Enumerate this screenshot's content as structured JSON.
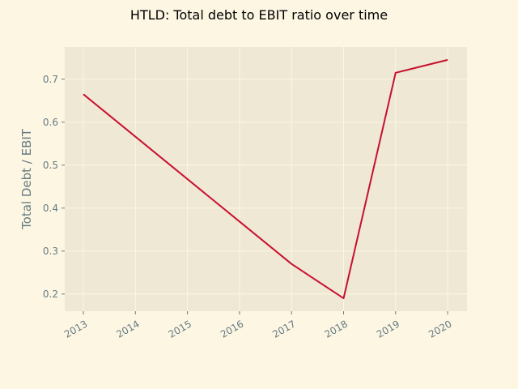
{
  "chart_data": {
    "type": "line",
    "title": "HTLD: Total debt to EBIT ratio over time",
    "xlabel": "",
    "ylabel": "Total Debt / EBIT",
    "x": [
      "2013",
      "2014",
      "2015",
      "2016",
      "2017",
      "2018",
      "2019",
      "2020"
    ],
    "series": [
      {
        "color": "#c8102e",
        "points": [
          {
            "x": "2013",
            "y": 0.665
          },
          {
            "x": "2017",
            "y": 0.27
          },
          {
            "x": "2018",
            "y": 0.19
          },
          {
            "x": "2019",
            "y": 0.715
          },
          {
            "x": "2020",
            "y": 0.745
          }
        ]
      }
    ],
    "yticks": [
      0.2,
      0.3,
      0.4,
      0.5,
      0.6,
      0.7
    ],
    "ylim": [
      0.16,
      0.775
    ],
    "grid": true,
    "colors": {
      "background": "#fdf6e3",
      "plot_area": "#eee8d5",
      "grid": "#fdf6e3",
      "text": "#657b83"
    }
  }
}
